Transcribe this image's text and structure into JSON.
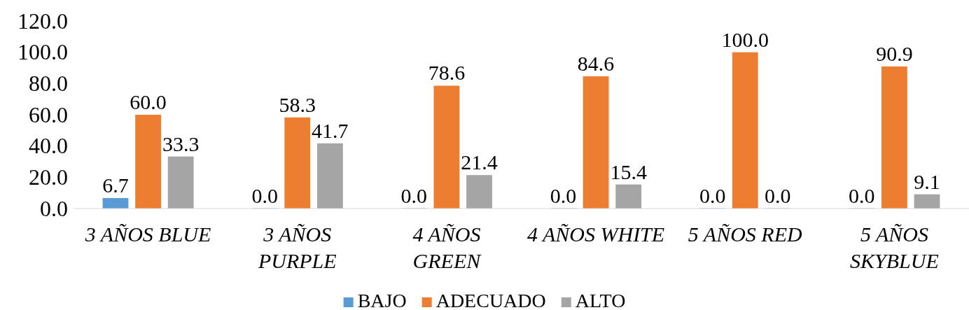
{
  "chart_data": {
    "type": "bar",
    "categories": [
      "3 AÑOS BLUE",
      "3 AÑOS PURPLE",
      "4 AÑOS GREEN",
      "4 AÑOS WHITE",
      "5 AÑOS RED",
      "5 AÑOS SKYBLUE"
    ],
    "series": [
      {
        "name": "BAJO",
        "color": "#5b9bd5",
        "values": [
          6.7,
          0,
          0,
          0,
          0,
          0
        ],
        "value_labels": [
          "6.7",
          "0.0",
          "0.0",
          "0.0",
          "0.0",
          "0.0"
        ]
      },
      {
        "name": "ADECUADO",
        "color": "#ed7d31",
        "values": [
          60,
          58.3,
          78.6,
          84.6,
          100,
          90.9
        ],
        "value_labels": [
          "60.0",
          "58.3",
          "78.6",
          "84.6",
          "100.0",
          "90.9"
        ]
      },
      {
        "name": "ALTO",
        "color": "#a5a5a5",
        "values": [
          33.3,
          41.7,
          21.4,
          15.4,
          0,
          9.1
        ],
        "value_labels": [
          "33.3",
          "41.7",
          "21.4",
          "15.4",
          "0.0",
          "9.1"
        ]
      }
    ],
    "ylim": [
      0,
      120
    ],
    "yticks": [
      {
        "value": 0,
        "label": "0.0"
      },
      {
        "value": 20,
        "label": "20.0"
      },
      {
        "value": 40,
        "label": "40.0"
      },
      {
        "value": 60,
        "label": "60.0"
      },
      {
        "value": 80,
        "label": "80.0"
      },
      {
        "value": 100,
        "label": "100.0"
      },
      {
        "value": 120,
        "label": "120.0"
      }
    ],
    "grid": false,
    "legend": "bottom"
  }
}
